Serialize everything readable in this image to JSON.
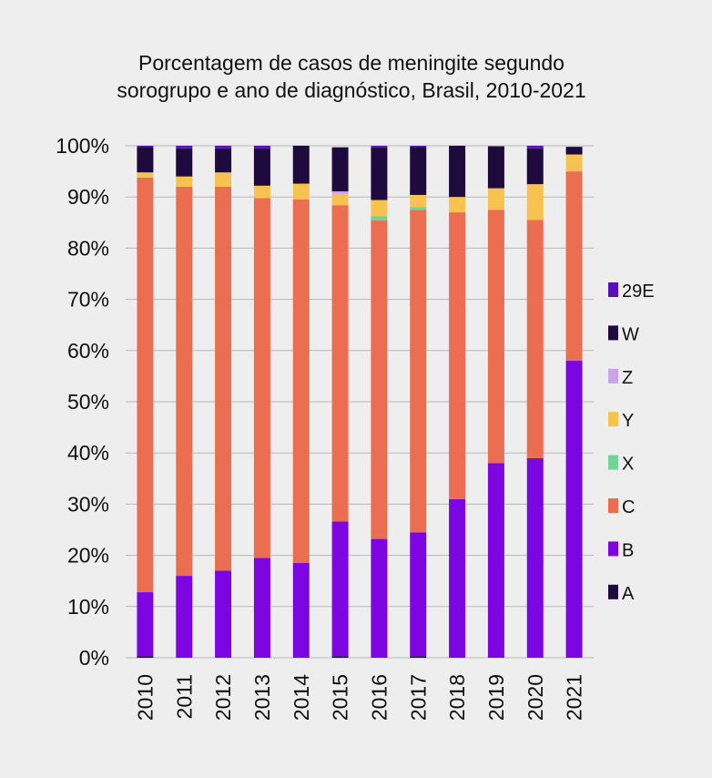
{
  "chart_data": {
    "type": "bar",
    "stacked": true,
    "title": "Porcentagem de casos de meningite segundo sorogrupo e ano de diagnóstico, Brasil, 2010-2021",
    "title_lines": [
      "Porcentagem de casos de meningite segundo",
      "sorogrupo e ano de diagnóstico, Brasil, 2010-2021"
    ],
    "xlabel": "",
    "ylabel": "",
    "ylim": [
      0,
      100
    ],
    "yticks": [
      "0%",
      "10%",
      "20%",
      "30%",
      "40%",
      "50%",
      "60%",
      "70%",
      "80%",
      "90%",
      "100%"
    ],
    "grid": true,
    "legend_position": "right",
    "categories": [
      "2010",
      "2011",
      "2012",
      "2013",
      "2014",
      "2015",
      "2016",
      "2017",
      "2018",
      "2019",
      "2020",
      "2021"
    ],
    "series": [
      {
        "name": "A",
        "color": "#1e0a3c",
        "values": [
          0.3,
          0,
          0,
          0,
          0,
          0.3,
          0,
          0.3,
          0,
          0,
          0,
          0
        ]
      },
      {
        "name": "B",
        "color": "#7d06e0",
        "values": [
          12.5,
          16,
          17,
          19.5,
          18.5,
          26.3,
          23.2,
          24.2,
          31,
          38,
          39,
          58
        ]
      },
      {
        "name": "C",
        "color": "#ec6e50",
        "values": [
          81,
          76,
          75,
          70.3,
          71,
          61.8,
          62.2,
          63,
          56,
          49.5,
          46.5,
          37
        ]
      },
      {
        "name": "X",
        "color": "#6fd39a",
        "values": [
          0,
          0,
          0,
          0,
          0,
          0,
          0.8,
          0.5,
          0,
          0,
          0,
          0
        ]
      },
      {
        "name": "Y",
        "color": "#f7c24f",
        "values": [
          1,
          2,
          2.8,
          2.4,
          3.1,
          2.2,
          3.2,
          2.4,
          3,
          4.2,
          7,
          3.3
        ]
      },
      {
        "name": "Z",
        "color": "#c9a3ee",
        "values": [
          0,
          0,
          0,
          0,
          0,
          0.5,
          0,
          0,
          0,
          0,
          0,
          0
        ]
      },
      {
        "name": "W",
        "color": "#1e0a3c",
        "values": [
          5,
          5.5,
          4.7,
          7.3,
          7.4,
          8.6,
          10.3,
          9.4,
          10,
          8.2,
          7,
          1.5
        ]
      },
      {
        "name": "29E",
        "color": "#5a10b8",
        "values": [
          0.2,
          0.5,
          0.5,
          0.5,
          0,
          0,
          0.3,
          0.2,
          0,
          0,
          0.5,
          0
        ]
      }
    ],
    "legend_order": [
      "29E",
      "W",
      "Z",
      "Y",
      "X",
      "C",
      "B",
      "A"
    ]
  },
  "colors": {
    "background": "#efeeee",
    "grid": "#b9b8b8",
    "text": "#111111"
  }
}
